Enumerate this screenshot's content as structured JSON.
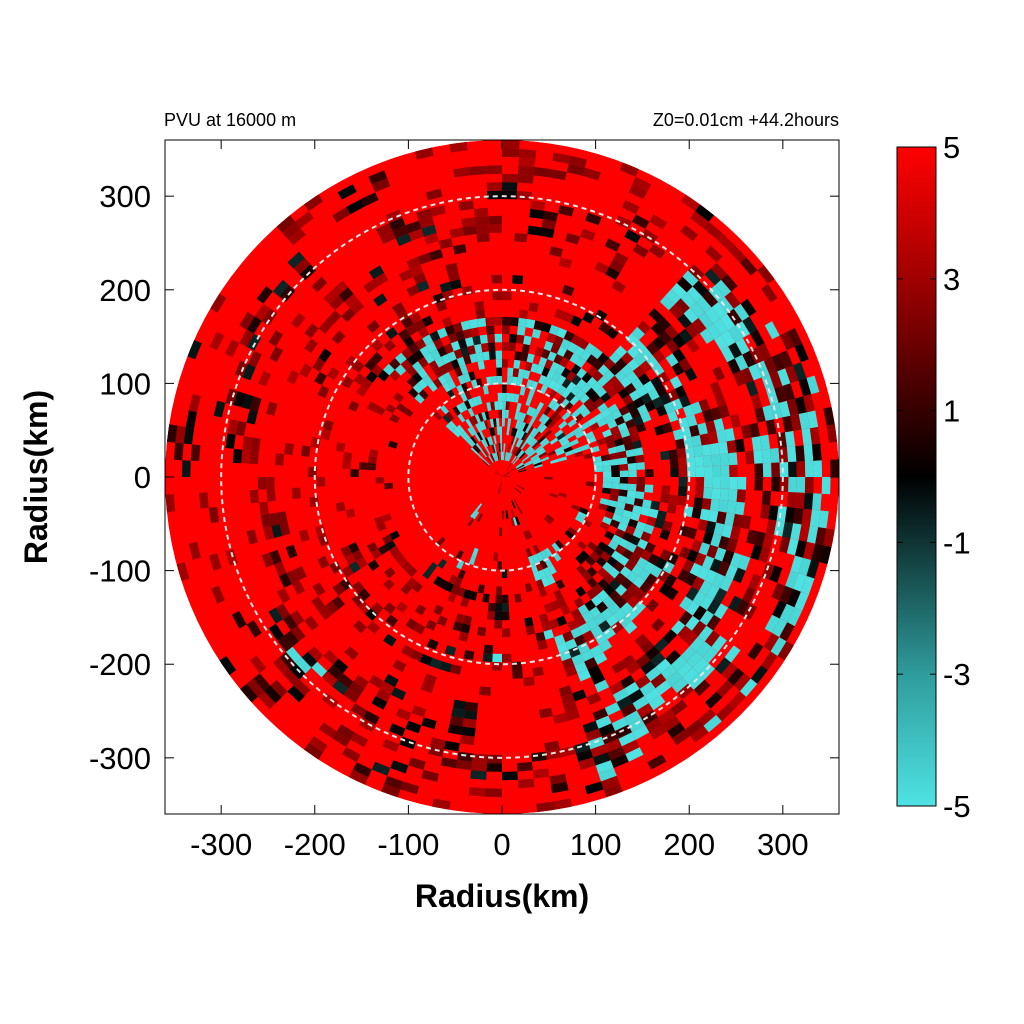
{
  "chart_data": {
    "type": "heatmap",
    "projection": "polar-disk",
    "title_left": "PVU at 16000 m",
    "title_right": "Z0=0.01cm  +44.2hours",
    "xlabel": "Radius(km)",
    "ylabel": "Radius(km)",
    "xlim": [
      -360,
      360
    ],
    "ylim": [
      -360,
      360
    ],
    "x_ticks": [
      -300,
      -200,
      -100,
      0,
      100,
      200,
      300
    ],
    "y_ticks": [
      300,
      200,
      100,
      0,
      -100,
      -200,
      -300
    ],
    "x_tick_labels": [
      "-300",
      "-200",
      "-100",
      "0",
      "100",
      "200",
      "300"
    ],
    "y_tick_labels": [
      "300",
      "200",
      "100",
      "0",
      "-100",
      "-200",
      "-300"
    ],
    "domain_radius_km": 360,
    "reference_circles_km": [
      100,
      200,
      300
    ],
    "colorbar": {
      "range": [
        -5,
        5
      ],
      "ticks": [
        5,
        3,
        1,
        -1,
        -3,
        -5
      ],
      "tick_labels": [
        "5",
        "3",
        "1",
        "-1",
        "-3",
        "-5"
      ],
      "stops": [
        {
          "value": 5,
          "color": "#ff0000"
        },
        {
          "value": 3,
          "color": "#a00000"
        },
        {
          "value": 0,
          "color": "#000000"
        },
        {
          "value": -3,
          "color": "#2f9c9c"
        },
        {
          "value": -5,
          "color": "#4fe3e3"
        }
      ]
    },
    "field_description": "Mostly positive PVU (red, up to 5) across the disk; negative values (cyan, near -5) concentrated in the north-central core (0 to 150 km north) and in a spiral band on the east/south-east side from about 100 km to 350 km radius; dark (near 0) streaks in the outer rings."
  }
}
